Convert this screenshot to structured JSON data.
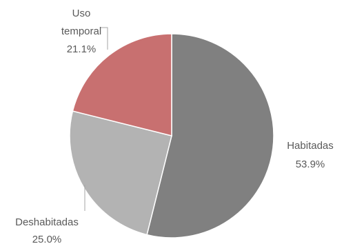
{
  "chart_data": {
    "type": "pie",
    "title": "",
    "slices": [
      {
        "label": "Habitadas",
        "value": 53.9,
        "value_label": "53.9%",
        "color": "#808080"
      },
      {
        "label": "Deshabitadas",
        "value": 25.0,
        "value_label": "25.0%",
        "color": "#b3b3b3"
      },
      {
        "label": "Uso temporal",
        "label_lines": [
          "Uso",
          "temporal"
        ],
        "value": 21.1,
        "value_label": "21.1%",
        "color": "#c87070"
      }
    ],
    "start_angle": "12 o'clock",
    "direction": "clockwise",
    "legend": "none",
    "slice_border_color": "#ffffff",
    "leader_line_color": "#a6a6a6"
  }
}
